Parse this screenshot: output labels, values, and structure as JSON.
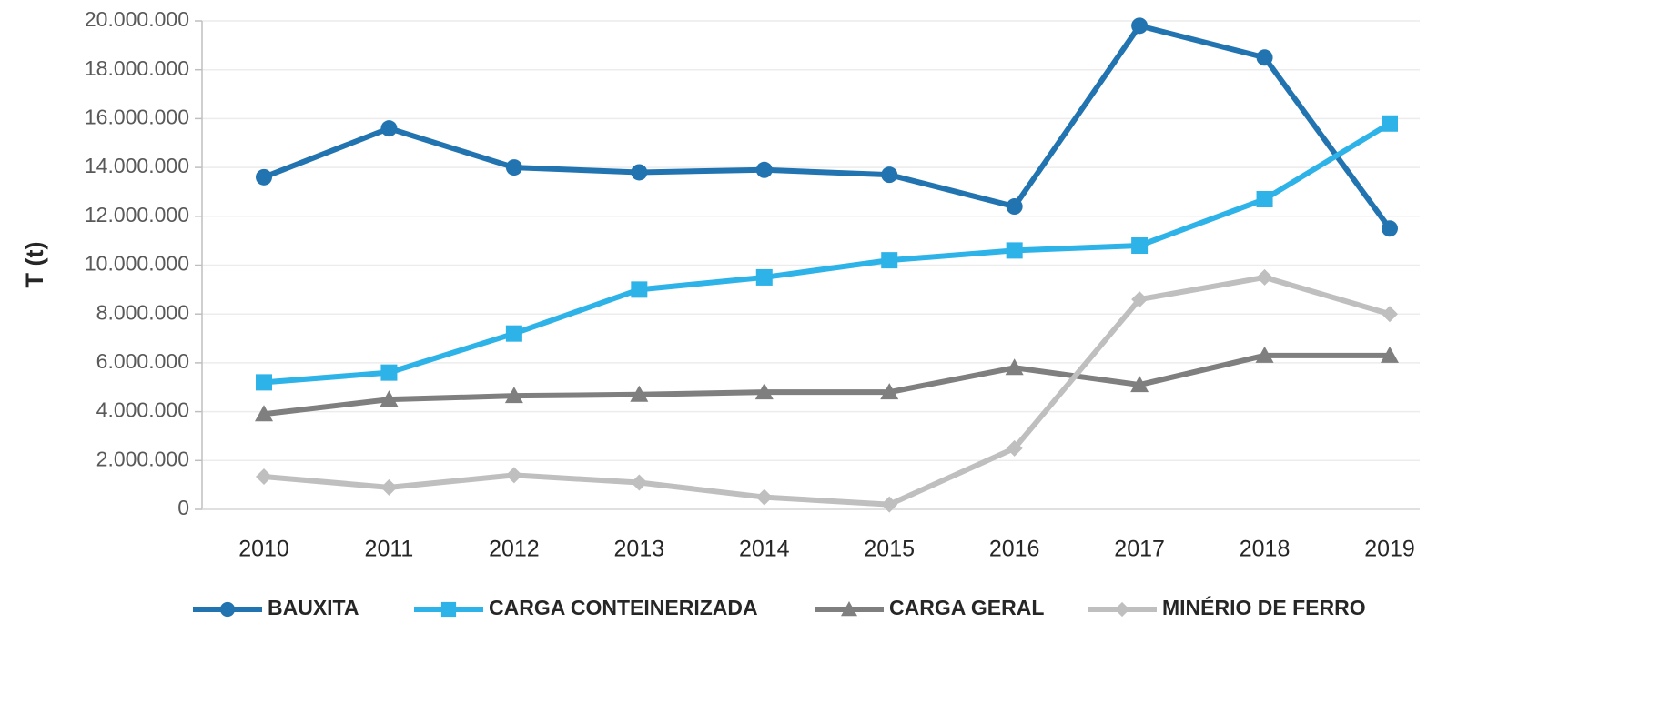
{
  "chart_data": {
    "type": "line",
    "y_label": "T (t)",
    "categories": [
      "2010",
      "2011",
      "2012",
      "2013",
      "2014",
      "2015",
      "2016",
      "2017",
      "2018",
      "2019"
    ],
    "series": [
      {
        "name": "BAUXITA",
        "color": "#2274b0",
        "marker": "circle",
        "values": [
          13600000,
          15600000,
          14000000,
          13800000,
          13900000,
          13700000,
          12400000,
          19800000,
          18500000,
          11500000
        ]
      },
      {
        "name": "CARGA CONTEINERIZADA",
        "color": "#2db3e8",
        "marker": "square",
        "values": [
          5200000,
          5600000,
          7200000,
          9000000,
          9500000,
          10200000,
          10600000,
          10800000,
          12700000,
          15800000
        ]
      },
      {
        "name": "CARGA GERAL",
        "color": "#7f7f7f",
        "marker": "triangle",
        "values": [
          3900000,
          4500000,
          4650000,
          4700000,
          4800000,
          4800000,
          5800000,
          5100000,
          6300000,
          6300000
        ]
      },
      {
        "name": "MINÉRIO DE FERRO",
        "color": "#bfbfbf",
        "marker": "diamond",
        "values": [
          1340000,
          900000,
          1400000,
          1100000,
          500000,
          200000,
          2500000,
          8600000,
          9500000,
          8000000
        ]
      }
    ],
    "ylim": [
      0,
      20000000
    ],
    "yticks": [
      0,
      {
        "value": 2000000,
        "label": "2.000.000"
      },
      {
        "value": 4000000,
        "label": "4.000.000"
      },
      {
        "value": 6000000,
        "label": "6.000.000"
      },
      {
        "value": 8000000,
        "label": "8.000.000"
      },
      {
        "value": 10000000,
        "label": "10.000.000"
      },
      {
        "value": 12000000,
        "label": "12.000.000"
      },
      {
        "value": 14000000,
        "label": "14.000.000"
      },
      {
        "value": 16000000,
        "label": "16.000.000"
      },
      {
        "value": 18000000,
        "label": "18.000.000"
      },
      {
        "value": 20000000,
        "label": "20.000.000"
      }
    ],
    "grid": true,
    "legend": "bottom"
  }
}
